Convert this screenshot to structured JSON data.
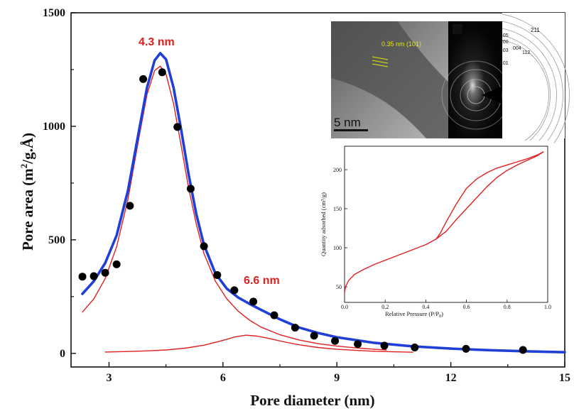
{
  "chart_data": {
    "type": "scatter",
    "xlabel": "Pore diameter (nm)",
    "ylabel_main": "Pore area (m",
    "ylabel_sup": "2",
    "ylabel_rest": "/g.Å)",
    "xlim": [
      2,
      15
    ],
    "ylim": [
      -60,
      1500
    ],
    "x_ticks": [
      3,
      6,
      9,
      12,
      15
    ],
    "y_ticks": [
      0,
      500,
      1000,
      1500
    ],
    "series": [
      {
        "kind": "points",
        "color": "#000000",
        "x": [
          2.3,
          2.6,
          2.9,
          3.2,
          3.55,
          3.9,
          4.4,
          4.8,
          5.15,
          5.5,
          5.85,
          6.3,
          6.8,
          7.35,
          7.9,
          8.4,
          8.95,
          9.55,
          10.25,
          11.05,
          12.4,
          13.9
        ],
        "y": [
          338,
          340,
          355,
          392,
          650,
          1208,
          1238,
          997,
          725,
          472,
          345,
          278,
          228,
          168,
          113,
          78,
          55,
          41,
          34,
          26,
          20,
          15
        ]
      },
      {
        "kind": "fit",
        "color": "#1f3fd6",
        "x": [
          2.3,
          2.6,
          2.9,
          3.2,
          3.5,
          3.8,
          4.0,
          4.2,
          4.35,
          4.5,
          4.7,
          4.9,
          5.1,
          5.3,
          5.5,
          5.8,
          6.1,
          6.4,
          6.7,
          7.0,
          7.5,
          8.0,
          8.5,
          9.0,
          10.0,
          11.0,
          12.0,
          13.0,
          14.0,
          15.0
        ],
        "y": [
          262,
          318,
          398,
          520,
          718,
          990,
          1170,
          1290,
          1322,
          1295,
          1170,
          985,
          785,
          612,
          478,
          352,
          285,
          246,
          218,
          192,
          150,
          114,
          90,
          71,
          46,
          31,
          21,
          14,
          9,
          5
        ]
      },
      {
        "kind": "peak",
        "color": "#e02020",
        "x": [
          2.3,
          2.6,
          2.9,
          3.2,
          3.5,
          3.8,
          4.0,
          4.2,
          4.35,
          4.5,
          4.7,
          4.9,
          5.1,
          5.3,
          5.5,
          5.8,
          6.1,
          6.4,
          6.7,
          7.0,
          7.5,
          8.0,
          8.5,
          9.0,
          9.5,
          10.0,
          10.3
        ],
        "y": [
          182,
          240,
          330,
          470,
          680,
          960,
          1140,
          1245,
          1265,
          1230,
          1100,
          915,
          725,
          568,
          440,
          318,
          240,
          186,
          146,
          116,
          82,
          59,
          43,
          32,
          24,
          18,
          15
        ]
      },
      {
        "kind": "peak",
        "color": "#e02020",
        "x": [
          2.9,
          3.5,
          4.0,
          4.5,
          5.0,
          5.5,
          6.0,
          6.3,
          6.6,
          6.9,
          7.2,
          7.6,
          8.0,
          8.5,
          9.0,
          9.5,
          10.0,
          10.5,
          11.0
        ],
        "y": [
          6,
          8,
          11,
          15,
          23,
          36,
          57,
          72,
          80,
          76,
          66,
          51,
          38,
          26,
          18,
          13,
          9,
          7,
          5
        ]
      }
    ],
    "annotations": [
      {
        "text": "4.3 nm",
        "color": "#e02020"
      },
      {
        "text": "6.6 nm",
        "color": "#e02020"
      }
    ],
    "inset_isotherm": {
      "xlabel": "Relative Pressure (P/P",
      "xlabel_sub": "0",
      "xlabel_end": ")",
      "ylabel": "Quantity adsorbed (cm³/g)",
      "xlim": [
        0,
        1.0
      ],
      "ylim": [
        30,
        230
      ],
      "x_ticks": [
        "0.0",
        "0.2",
        "0.4",
        "0.6",
        "0.8",
        "1.0"
      ],
      "y_ticks": [
        "50",
        "100",
        "150",
        "200"
      ],
      "x_tick_values": [
        0,
        0.2,
        0.4,
        0.6,
        0.8,
        1.0
      ],
      "y_tick_values": [
        50,
        100,
        150,
        200
      ],
      "color": "#e02020",
      "adsorption": {
        "x": [
          0.0,
          0.005,
          0.02,
          0.05,
          0.1,
          0.15,
          0.2,
          0.25,
          0.3,
          0.35,
          0.4,
          0.45,
          0.5,
          0.55,
          0.6,
          0.65,
          0.7,
          0.75,
          0.8,
          0.85,
          0.9,
          0.95,
          0.98
        ],
        "y": [
          42,
          50,
          58,
          66,
          73,
          79,
          84,
          89,
          94,
          99,
          104,
          111,
          121,
          136,
          150,
          164,
          178,
          190,
          199,
          206,
          212,
          218,
          223
        ]
      },
      "desorption": {
        "x": [
          0.98,
          0.95,
          0.9,
          0.85,
          0.8,
          0.75,
          0.7,
          0.65,
          0.6,
          0.55,
          0.5,
          0.47,
          0.45
        ],
        "y": [
          223,
          219,
          214,
          210,
          206,
          202,
          196,
          188,
          176,
          156,
          133,
          118,
          111
        ]
      }
    },
    "tem_inset": {
      "lattice_label": "0.35 nm (101)",
      "scale_bar": "5 nm",
      "ring_labels": [
        "211",
        "105",
        "200",
        "004",
        "103",
        "112",
        "101"
      ]
    }
  }
}
